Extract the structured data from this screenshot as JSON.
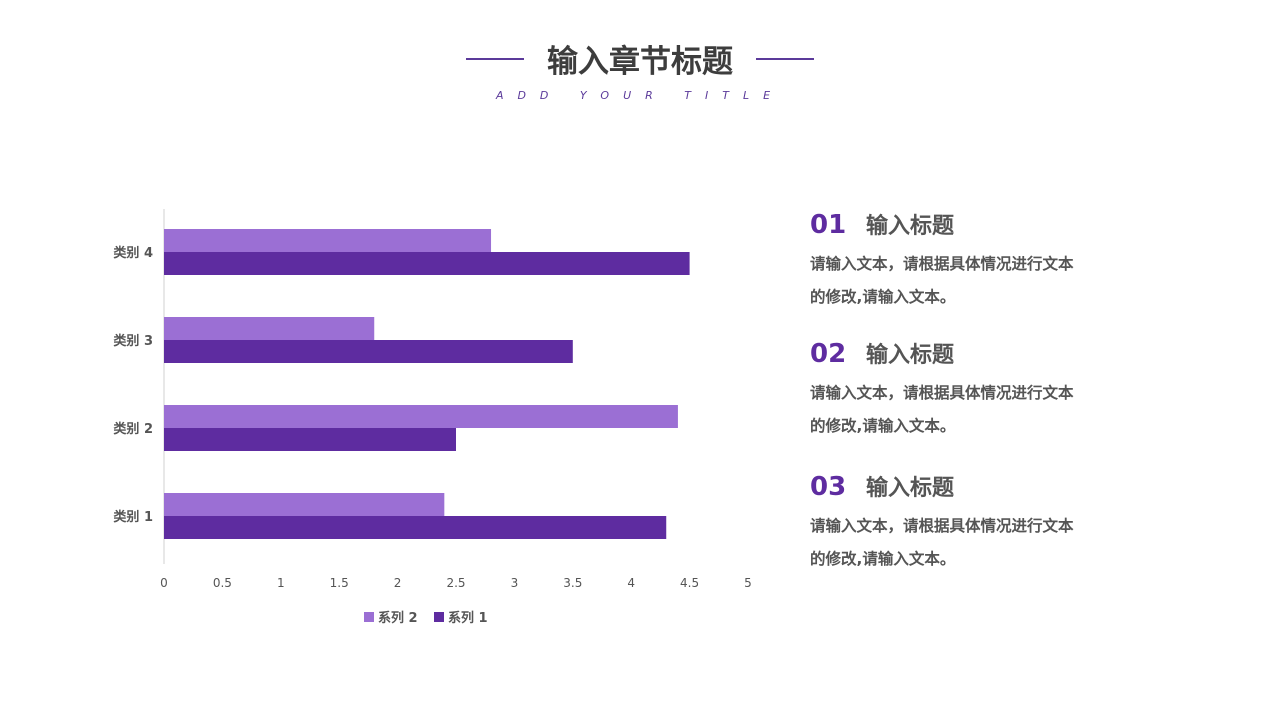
{
  "header": {
    "title": "输入章节标题",
    "subtitle": "ADD YOUR TITLE",
    "accent": "#5b3a9a"
  },
  "items": [
    {
      "num": "01",
      "title": "输入标题",
      "body": "请输入文本，请根据具体情况进行文本的修改,请输入文本。"
    },
    {
      "num": "02",
      "title": "输入标题",
      "body": "请输入文本，请根据具体情况进行文本的修改,请输入文本。"
    },
    {
      "num": "03",
      "title": "输入标题",
      "body": "请输入文本，请根据具体情况进行文本的修改,请输入文本。"
    }
  ],
  "chart_data": {
    "type": "bar",
    "orientation": "horizontal",
    "categories": [
      "类别 1",
      "类别 2",
      "类别 3",
      "类别 4"
    ],
    "series": [
      {
        "name": "系列 1",
        "values": [
          4.3,
          2.5,
          3.5,
          4.5
        ],
        "color": "#5e2ca0"
      },
      {
        "name": "系列 2",
        "values": [
          2.4,
          4.4,
          1.8,
          2.8
        ],
        "color": "#9b6fd4"
      }
    ],
    "xlim": [
      0,
      5
    ],
    "xticks": [
      "0",
      "0.5",
      "1",
      "1.5",
      "2",
      "2.5",
      "3",
      "3.5",
      "4",
      "4.5",
      "5"
    ],
    "grid": false,
    "legend": "bottom",
    "legend_order": [
      "系列 2",
      "系列 1"
    ]
  }
}
